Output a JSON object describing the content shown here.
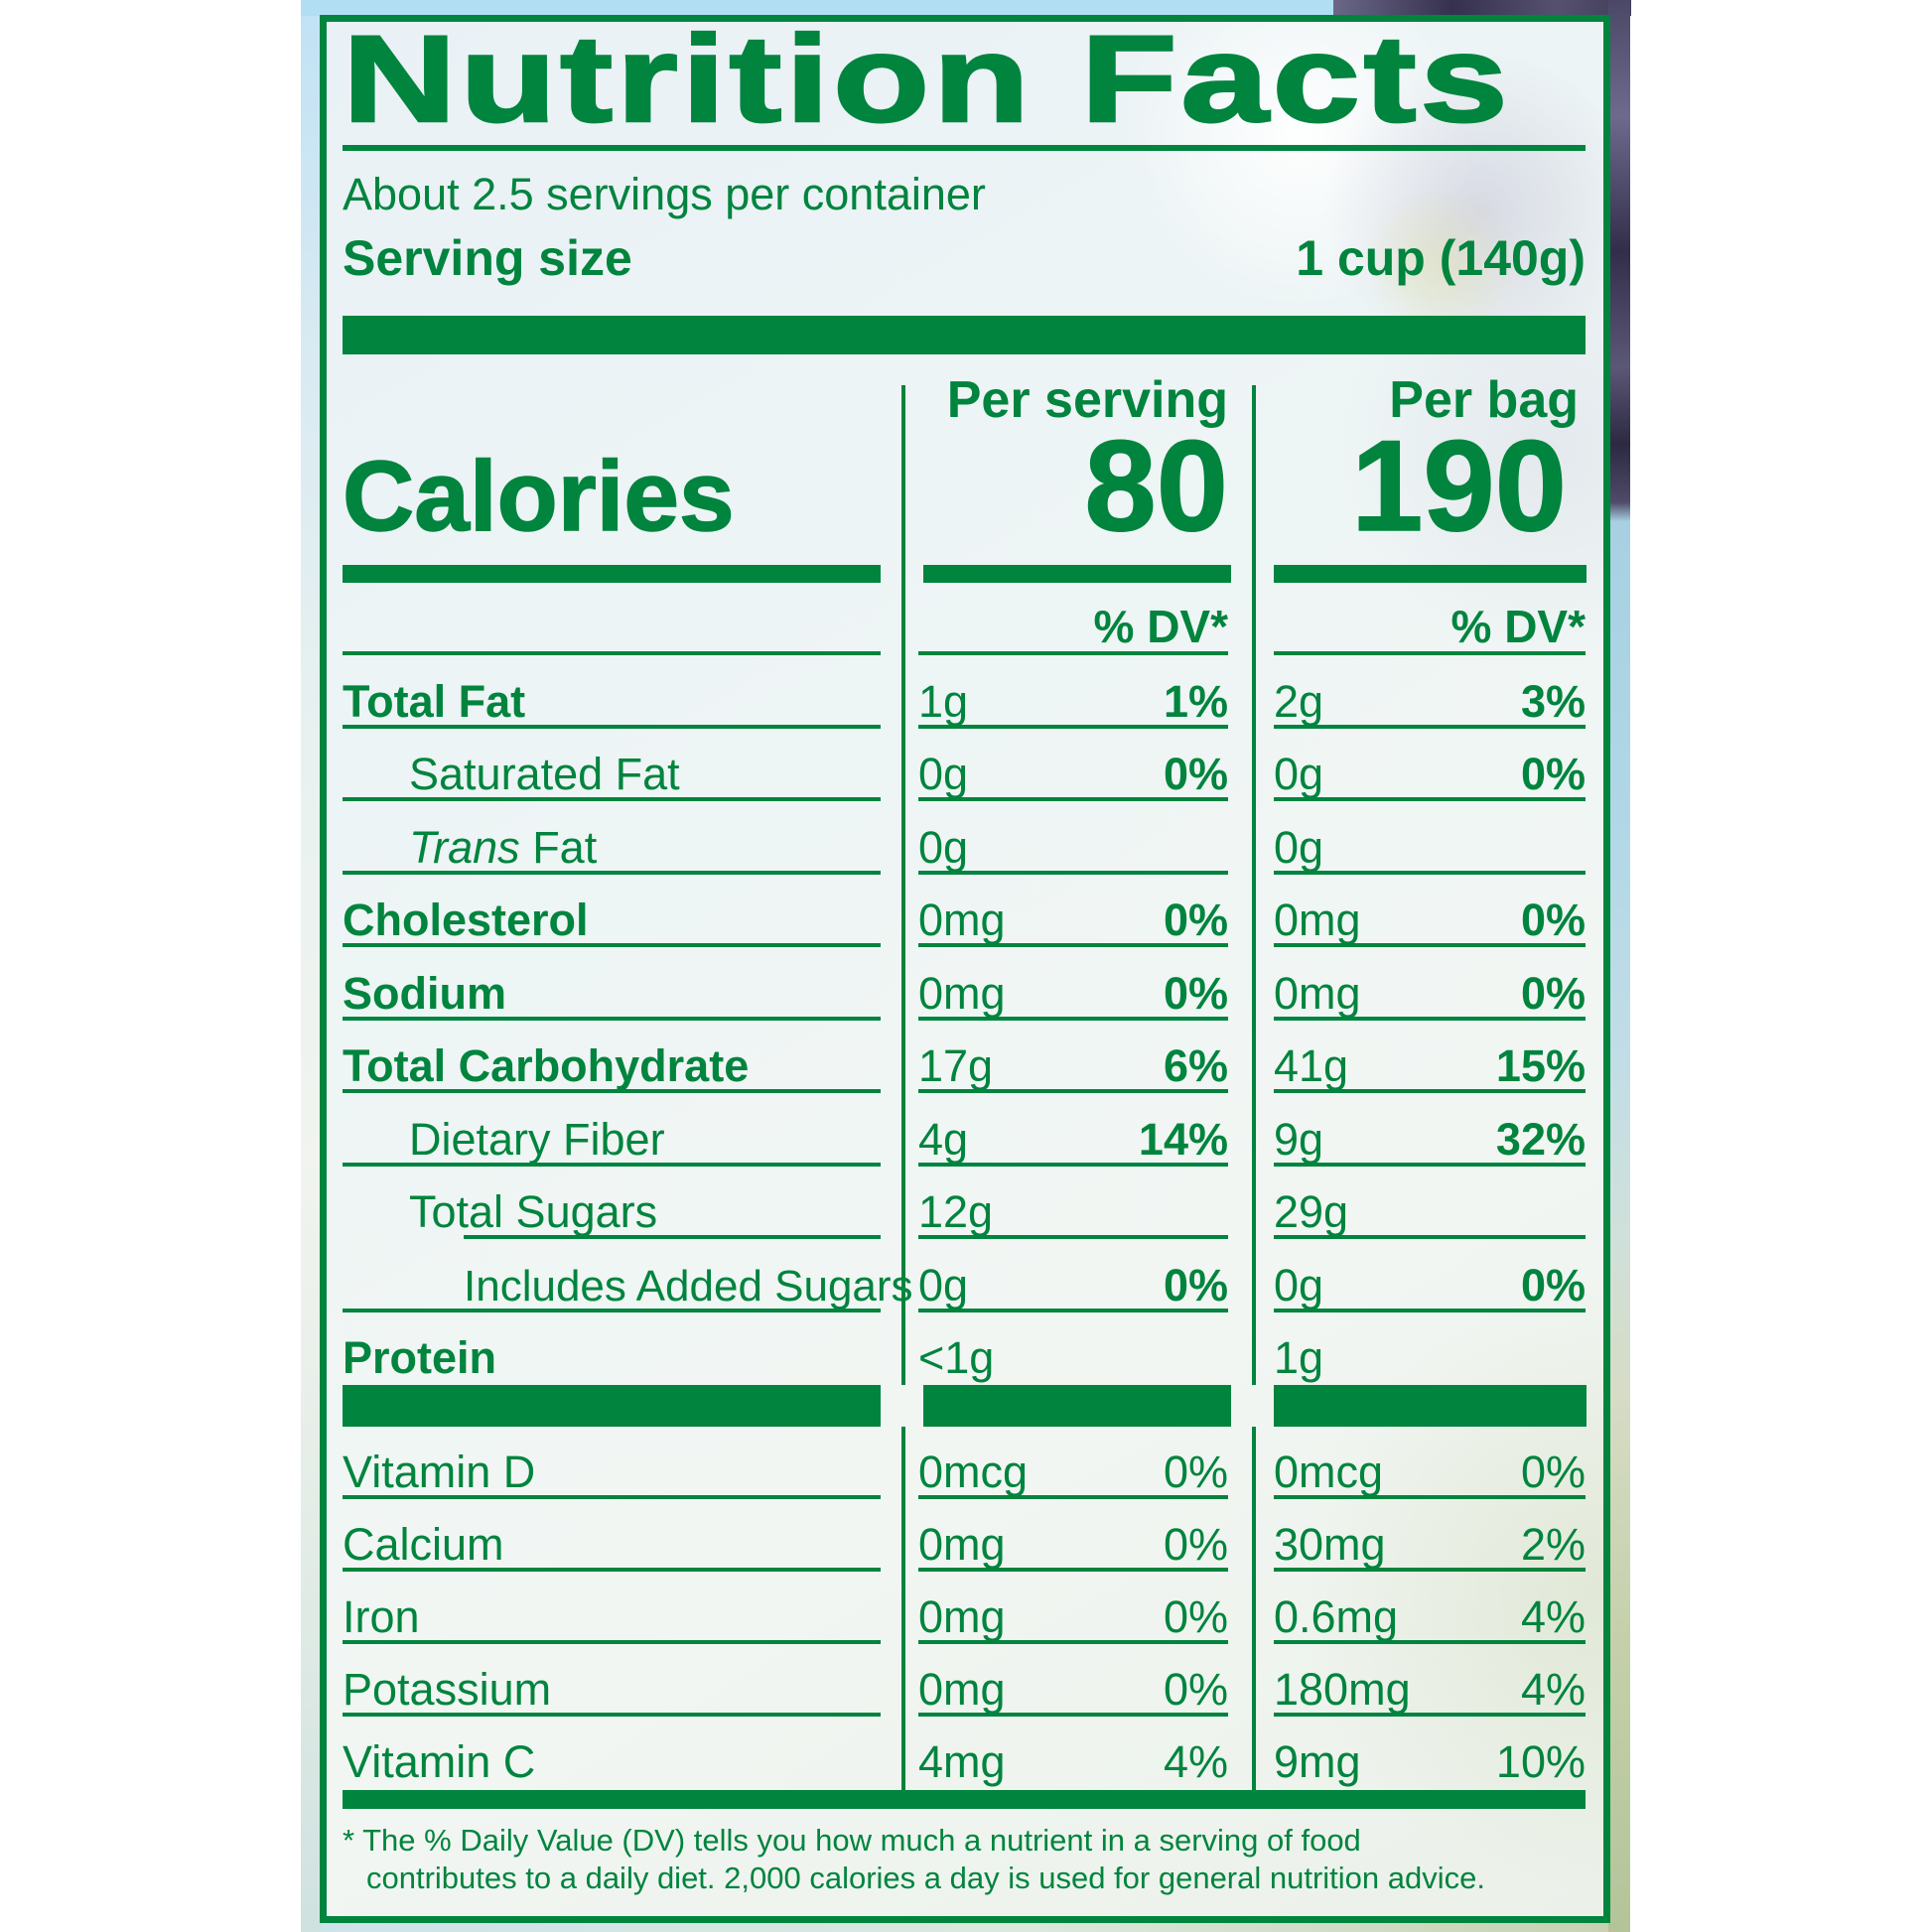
{
  "colors": {
    "green": "#00843E",
    "sky_blue": "#B2DEF4",
    "blueberry_dark": "#3B3754",
    "pale_sage": "#C3CFA8",
    "label_background": "#EEF4F4"
  },
  "label": {
    "title": "Nutrition Facts",
    "servings_per_container": "About 2.5 servings per container",
    "serving_size": {
      "label": "Serving size",
      "value": "1 cup (140g)"
    },
    "columns": {
      "serving": "Per serving",
      "bag": "Per bag",
      "dv_header": "% DV*"
    },
    "calories": {
      "label": "Calories",
      "per_serving": "80",
      "per_bag": "190"
    },
    "nutrients": [
      {
        "name": "Total Fat",
        "serving_amount": "1g",
        "serving_dv": "1%",
        "bag_amount": "2g",
        "bag_dv": "3%"
      },
      {
        "name": "Saturated Fat",
        "serving_amount": "0g",
        "serving_dv": "0%",
        "bag_amount": "0g",
        "bag_dv": "0%"
      },
      {
        "name_italic": "Trans",
        "name_rest": " Fat",
        "serving_amount": "0g",
        "serving_dv": "",
        "bag_amount": "0g",
        "bag_dv": ""
      },
      {
        "name": "Cholesterol",
        "serving_amount": "0mg",
        "serving_dv": "0%",
        "bag_amount": "0mg",
        "bag_dv": "0%"
      },
      {
        "name": "Sodium",
        "serving_amount": "0mg",
        "serving_dv": "0%",
        "bag_amount": "0mg",
        "bag_dv": "0%"
      },
      {
        "name": "Total Carbohydrate",
        "serving_amount": "17g",
        "serving_dv": "6%",
        "bag_amount": "41g",
        "bag_dv": "15%"
      },
      {
        "name": "Dietary Fiber",
        "serving_amount": "4g",
        "serving_dv": "14%",
        "bag_amount": "9g",
        "bag_dv": "32%"
      },
      {
        "name": "Total Sugars",
        "serving_amount": "12g",
        "serving_dv": "",
        "bag_amount": "29g",
        "bag_dv": ""
      },
      {
        "name": "Includes Added Sugars",
        "serving_amount": "0g",
        "serving_dv": "0%",
        "bag_amount": "0g",
        "bag_dv": "0%"
      },
      {
        "name": "Protein",
        "serving_amount": "<1g",
        "serving_dv": "",
        "bag_amount": "1g",
        "bag_dv": ""
      }
    ],
    "vitamins": [
      {
        "name": "Vitamin D",
        "serving_amount": "0mcg",
        "serving_dv": "0%",
        "bag_amount": "0mcg",
        "bag_dv": "0%"
      },
      {
        "name": "Calcium",
        "serving_amount": "0mg",
        "serving_dv": "0%",
        "bag_amount": "30mg",
        "bag_dv": "2%"
      },
      {
        "name": "Iron",
        "serving_amount": "0mg",
        "serving_dv": "0%",
        "bag_amount": "0.6mg",
        "bag_dv": "4%"
      },
      {
        "name": "Potassium",
        "serving_amount": "0mg",
        "serving_dv": "0%",
        "bag_amount": "180mg",
        "bag_dv": "4%"
      },
      {
        "name": "Vitamin C",
        "serving_amount": "4mg",
        "serving_dv": "4%",
        "bag_amount": "9mg",
        "bag_dv": "10%"
      }
    ],
    "footnote": {
      "line1": "* The % Daily Value (DV) tells you how much a nutrient in a serving of food",
      "line2": "contributes to a daily diet. 2,000 calories a day is used for general nutrition advice."
    }
  }
}
